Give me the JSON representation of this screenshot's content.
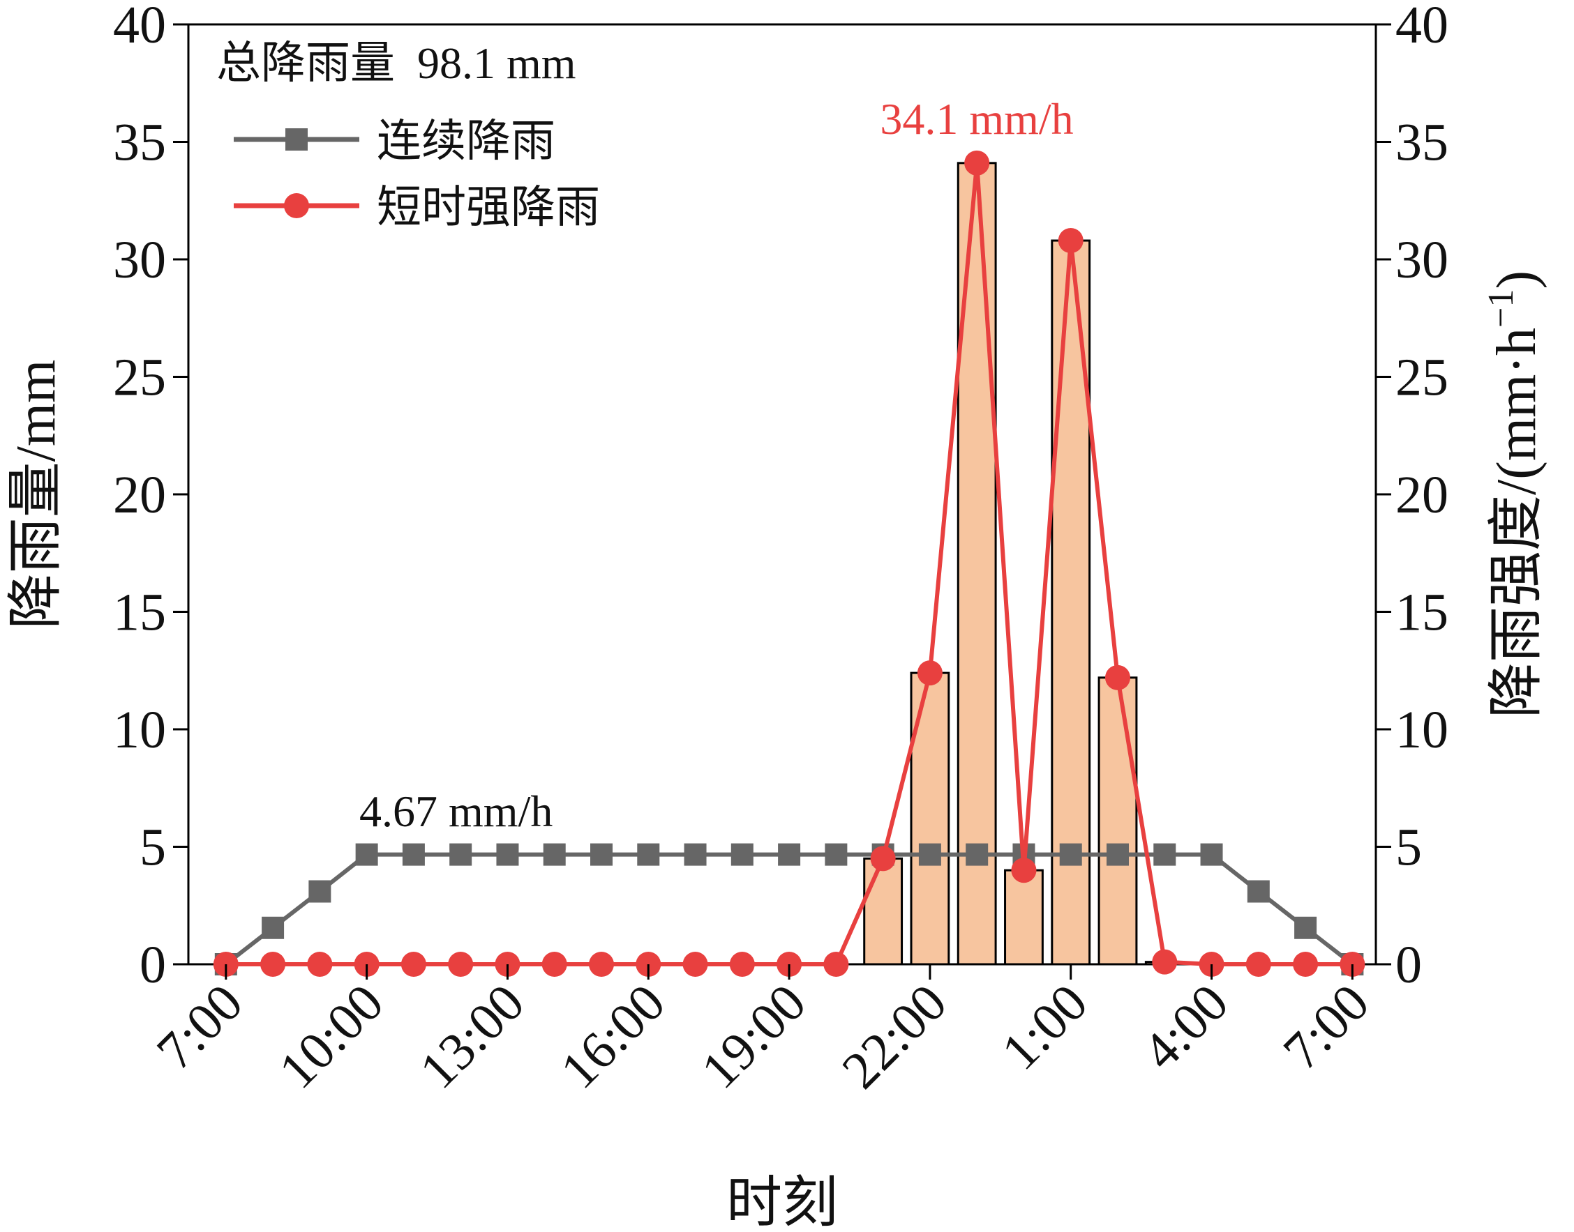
{
  "chart_data": {
    "type": "bar+line",
    "x_tick_labels": [
      "7:00",
      "10:00",
      "13:00",
      "16:00",
      "19:00",
      "22:00",
      "1:00",
      "4:00",
      "7:00"
    ],
    "xlabel": "时刻",
    "ylabel_left": "降雨量/mm",
    "ylabel_right_main": "降雨强度/(mm·h",
    "ylabel_right_sup": "−1",
    "ylabel_right_close": ")",
    "ylim": [
      0,
      40
    ],
    "y_ticks": [
      "0",
      "5",
      "10",
      "15",
      "20",
      "25",
      "30",
      "35",
      "40"
    ],
    "hours": [
      7,
      8,
      9,
      10,
      11,
      12,
      13,
      14,
      15,
      16,
      17,
      18,
      19,
      20,
      21,
      22,
      23,
      24,
      25,
      26,
      27,
      28,
      29,
      30,
      31
    ],
    "bars": {
      "name": "降雨量",
      "values": [
        0,
        0,
        0,
        0,
        0,
        0,
        0,
        0,
        0,
        0,
        0,
        0,
        0,
        0,
        4.5,
        12.4,
        34.1,
        4.0,
        30.8,
        12.2,
        0.1,
        0,
        0,
        0,
        0
      ],
      "color": "#f7c59f",
      "edge": "#000000"
    },
    "series": [
      {
        "name": "连续降雨",
        "color": "#666666",
        "marker": "square",
        "values": [
          0,
          1.55,
          3.1,
          4.67,
          4.67,
          4.67,
          4.67,
          4.67,
          4.67,
          4.67,
          4.67,
          4.67,
          4.67,
          4.67,
          4.67,
          4.67,
          4.67,
          4.67,
          4.67,
          4.67,
          4.67,
          4.67,
          3.1,
          1.55,
          0
        ]
      },
      {
        "name": "短时强降雨",
        "color": "#e8403f",
        "marker": "circle",
        "values": [
          0,
          0,
          0,
          0,
          0,
          0,
          0,
          0,
          0,
          0,
          0,
          0,
          0,
          0,
          4.5,
          12.4,
          34.1,
          4.0,
          30.8,
          12.2,
          0.1,
          0,
          0,
          0,
          0
        ]
      }
    ],
    "annotations": {
      "total": "总降雨量  98.1 mm",
      "continuous_rate": "4.67 mm/h",
      "peak_rate": "34.1 mm/h",
      "peak_color": "#e8403f"
    },
    "legend_position": "top-left"
  }
}
